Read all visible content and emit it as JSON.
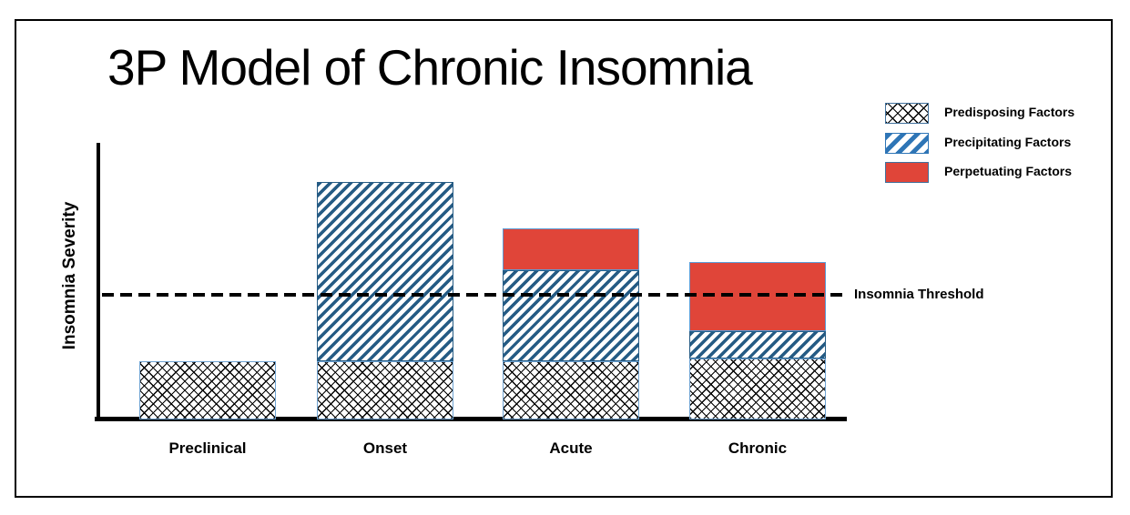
{
  "chart_data": {
    "type": "bar",
    "stacked": true,
    "title": "3P Model of Chronic Insomnia",
    "ylabel": "Insomnia Severity",
    "xlabel": "",
    "categories": [
      "Preclinical",
      "Onset",
      "Acute",
      "Chronic"
    ],
    "series": [
      {
        "name": "Predisposing Factors",
        "pattern": "crosshatch",
        "values": [
          2.1,
          2.1,
          2.1,
          2.2
        ]
      },
      {
        "name": "Precipitating Factors",
        "pattern": "stripes",
        "values": [
          0,
          6.5,
          3.3,
          1.0
        ]
      },
      {
        "name": "Perpetuating Factors",
        "pattern": "solid",
        "values": [
          0,
          0,
          1.5,
          2.5
        ]
      }
    ],
    "threshold": {
      "label": "Insomnia Threshold",
      "value": 4.5,
      "style": "dashed-black"
    },
    "ylim": [
      0,
      10
    ],
    "y_ticks_visible": false,
    "grid": false,
    "legend_position": "top-right"
  },
  "colors": {
    "perpetuating_red": "#E04539",
    "bar_stripe_blue": "#255B84",
    "legend_stripe_blue": "#2E75B6",
    "bar_border_blue": "#6FA3D2",
    "crosshatch_line": "#000000",
    "axis": "#000000",
    "threshold_line": "#000000",
    "frame_border": "#000000",
    "background": "#FFFFFF"
  }
}
